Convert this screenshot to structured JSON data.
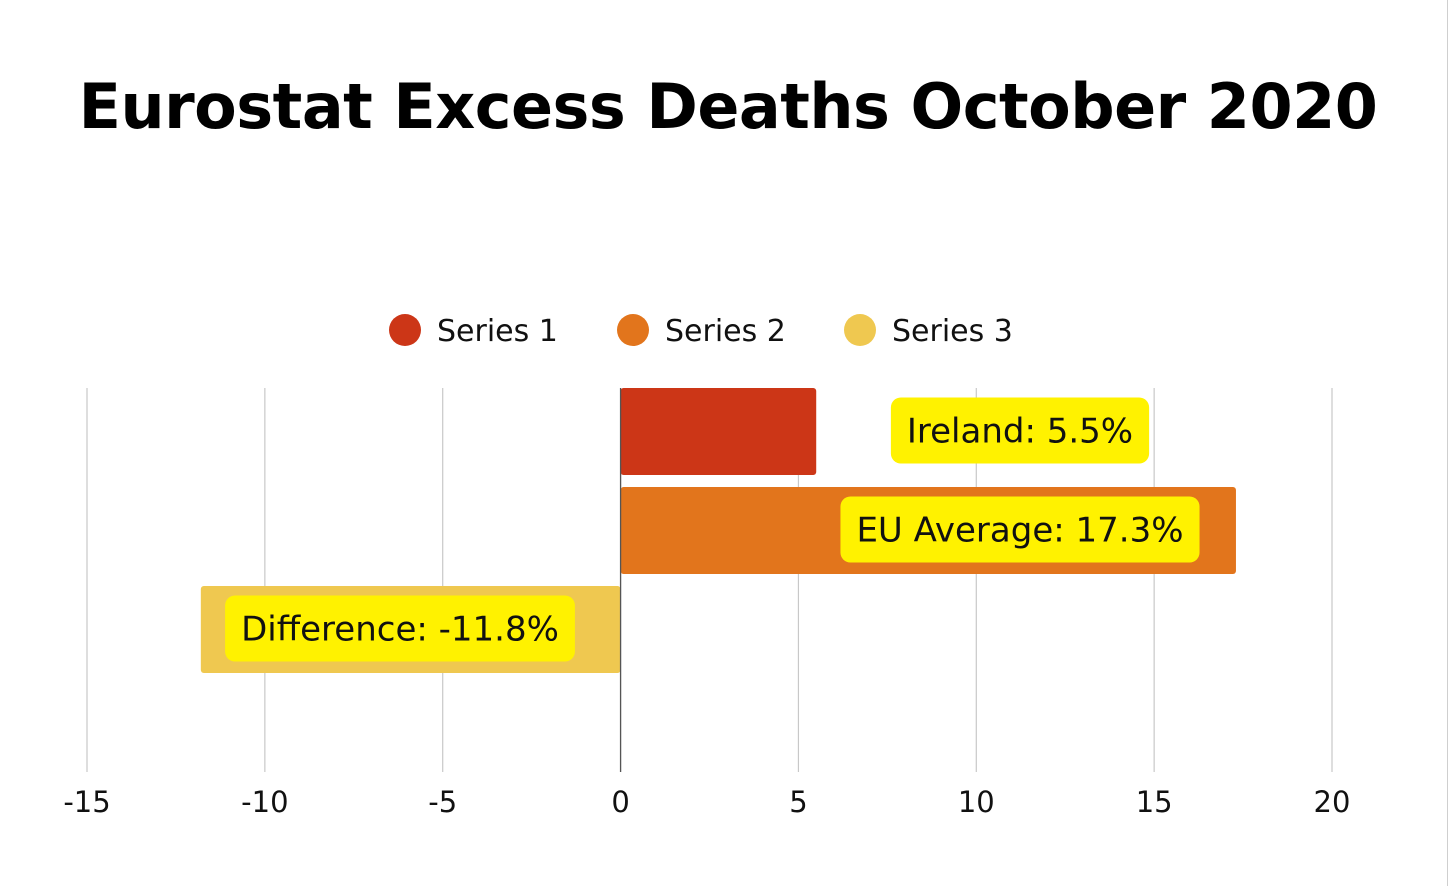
{
  "chart_data": {
    "type": "bar",
    "orientation": "horizontal",
    "title": "Eurostat Excess Deaths October 2020",
    "xlim": [
      -15,
      20
    ],
    "xticks": [
      -15,
      -10,
      -5,
      0,
      5,
      10,
      15,
      20
    ],
    "grid": true,
    "legend_position": "top",
    "series": [
      {
        "name": "Series 1",
        "value": 5.5,
        "color": "#cc3617",
        "annotation": "Ireland: 5.5%"
      },
      {
        "name": "Series 2",
        "value": 17.3,
        "color": "#e2751c",
        "annotation": "EU Average: 17.3%"
      },
      {
        "name": "Series 3",
        "value": -11.8,
        "color": "#efc850",
        "annotation": "Difference: -11.8%"
      }
    ],
    "annotation_background": "#fff200"
  }
}
